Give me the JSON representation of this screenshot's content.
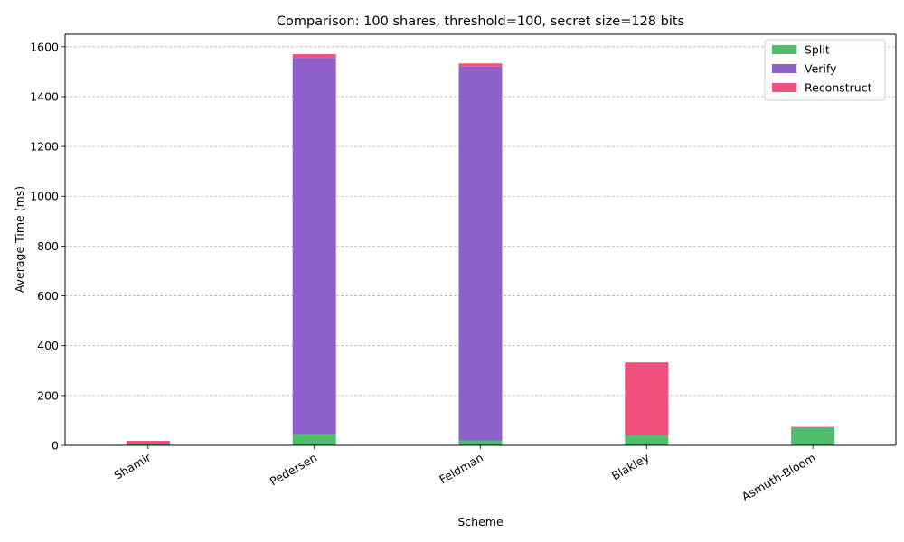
{
  "chart_data": {
    "type": "bar",
    "stacked": true,
    "title": "Comparison: 100 shares, threshold=100, secret size=128 bits",
    "xlabel": "Scheme",
    "ylabel": "Average Time (ms)",
    "categories": [
      "Shamir",
      "Pedersen",
      "Feldman",
      "Blakley",
      "Asmuth-Bloom"
    ],
    "ylim": [
      0,
      1650
    ],
    "yticks": [
      0,
      200,
      400,
      600,
      800,
      1000,
      1200,
      1400,
      1600
    ],
    "grid": "y-dashed",
    "legend_position": "top-right",
    "series": [
      {
        "name": "Split",
        "color": "#4fbd6c",
        "values": [
          5,
          45,
          20,
          40,
          70
        ]
      },
      {
        "name": "Verify",
        "color": "#8e60cc",
        "values": [
          0,
          1510,
          1500,
          0,
          0
        ]
      },
      {
        "name": "Reconstruct",
        "color": "#f0507e",
        "values": [
          13,
          15,
          13,
          293,
          4
        ]
      }
    ]
  }
}
